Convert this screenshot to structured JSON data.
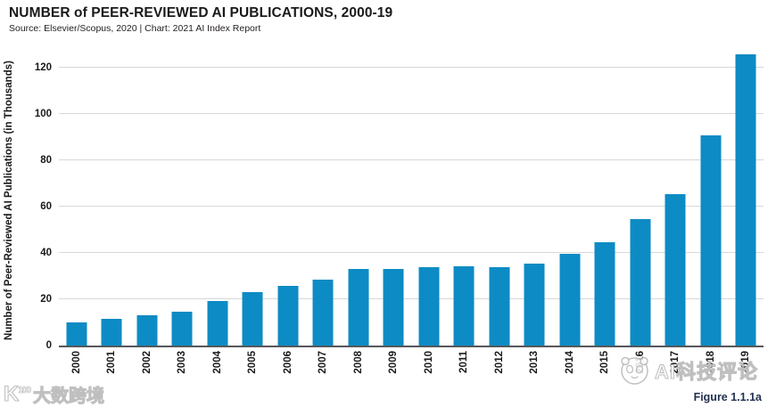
{
  "header": {
    "title": "NUMBER of PEER-REVIEWED AI PUBLICATIONS, 2000-19",
    "source": "Source: Elsevier/Scopus, 2020 | Chart: 2021 AI Index Report"
  },
  "chart_data": {
    "type": "bar",
    "title": "NUMBER of PEER-REVIEWED AI PUBLICATIONS, 2000-19",
    "categories": [
      "2000",
      "2001",
      "2002",
      "2003",
      "2004",
      "2005",
      "2006",
      "2007",
      "2008",
      "2009",
      "2010",
      "2011",
      "2012",
      "2013",
      "2014",
      "2015",
      "2016",
      "2017",
      "2018",
      "2019"
    ],
    "values": [
      10.0,
      11.4,
      12.9,
      14.6,
      19.4,
      22.9,
      25.9,
      28.4,
      33.2,
      33.0,
      33.9,
      34.3,
      33.9,
      35.3,
      39.6,
      44.7,
      54.6,
      65.4,
      90.8,
      125.6
    ],
    "xlabel": "",
    "ylabel": "Number of Peer-Reviewed AI Publications (in Thousands)",
    "ylim": [
      0,
      127
    ],
    "yticks": [
      0,
      20,
      40,
      60,
      80,
      100,
      120
    ],
    "grid": true,
    "legend": "none",
    "bar_color": "#0d8bc4"
  },
  "footer": {
    "figure_label": "Figure 1.1.1a"
  },
  "watermarks": {
    "right_label": "AI科技评论",
    "bottom_left_logo": "K¹⁰⁰",
    "bottom_left_label": "大数跨境"
  },
  "colors": {
    "bar": "#0d8bc4",
    "gridline": "#d8d8d8",
    "axis": "#55575b",
    "title": "#1a1a1a",
    "figure_label": "#22304f"
  }
}
